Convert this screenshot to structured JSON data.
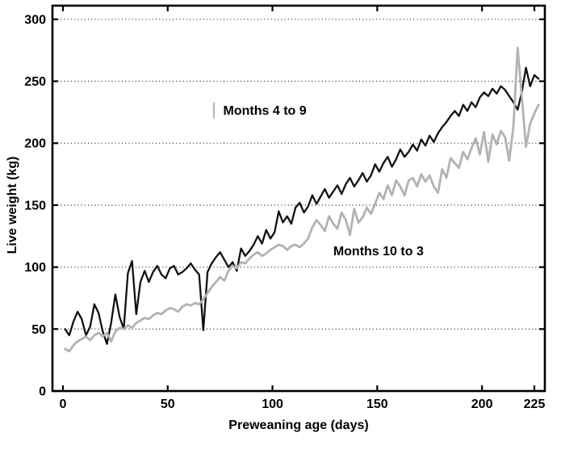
{
  "figure": {
    "background": "#ffffff",
    "frame_color": "#000000"
  },
  "chart_data": {
    "type": "line",
    "title": "",
    "xlabel": "Preweaning age (days)",
    "ylabel": "Live weight (kg)",
    "xlim": [
      -5,
      230
    ],
    "ylim": [
      0,
      311
    ],
    "xticks": [
      0,
      50,
      100,
      150,
      200,
      225
    ],
    "yticks": [
      0,
      50,
      100,
      150,
      200,
      250,
      300
    ],
    "grid": "horizontal-dotted",
    "grid_color": "#333333",
    "legend": "inline-annotations",
    "x_start": 1,
    "x_step": 2,
    "series": [
      {
        "name": "Months 4 to 9",
        "color": "#111111",
        "width": 2.3,
        "values": [
          50,
          45,
          56,
          64,
          58,
          45,
          52,
          70,
          63,
          48,
          38,
          55,
          78,
          60,
          50,
          95,
          105,
          62,
          88,
          97,
          88,
          96,
          101,
          94,
          91,
          99,
          101,
          94,
          96,
          99,
          103,
          98,
          94,
          49,
          96,
          103,
          108,
          112,
          106,
          100,
          104,
          97,
          115,
          109,
          113,
          118,
          125,
          119,
          130,
          123,
          128,
          145,
          136,
          141,
          135,
          148,
          152,
          144,
          149,
          158,
          151,
          157,
          163,
          156,
          161,
          166,
          159,
          167,
          172,
          165,
          170,
          176,
          169,
          174,
          183,
          177,
          184,
          189,
          181,
          187,
          195,
          189,
          193,
          199,
          194,
          203,
          198,
          206,
          201,
          208,
          213,
          217,
          222,
          226,
          222,
          231,
          226,
          233,
          229,
          237,
          241,
          238,
          244,
          240,
          246,
          243,
          238,
          233,
          227,
          241,
          261,
          246,
          255,
          252
        ]
      },
      {
        "name": "Months 10 to 3",
        "color": "#b2b2b2",
        "width": 2.8,
        "values": [
          34,
          32,
          37,
          40,
          42,
          44,
          41,
          45,
          47,
          44,
          47,
          40,
          48,
          51,
          50,
          53,
          51,
          55,
          57,
          59,
          58,
          61,
          63,
          62,
          65,
          67,
          66,
          64,
          68,
          70,
          69,
          71,
          70,
          74,
          79,
          84,
          88,
          92,
          89,
          97,
          101,
          99,
          104,
          103,
          107,
          110,
          112,
          109,
          111,
          114,
          116,
          118,
          117,
          114,
          117,
          118,
          116,
          119,
          123,
          132,
          138,
          134,
          129,
          141,
          135,
          131,
          144,
          138,
          126,
          147,
          136,
          140,
          148,
          143,
          151,
          160,
          155,
          166,
          158,
          170,
          165,
          158,
          170,
          172,
          165,
          175,
          169,
          174,
          165,
          160,
          179,
          172,
          188,
          184,
          180,
          193,
          187,
          196,
          204,
          191,
          209,
          185,
          207,
          199,
          210,
          205,
          186,
          214,
          277,
          238,
          197,
          216,
          224,
          231
        ]
      }
    ],
    "annotations": [
      {
        "text": "Months 4 to 9",
        "day": 76.5,
        "kg": 226.5
      },
      {
        "text": "Months 10 to 3",
        "day": 129,
        "kg": 113
      }
    ],
    "annotation_marker": {
      "day": 72,
      "kg_from": 220,
      "kg_to": 233,
      "color": "#b2b2b2"
    }
  }
}
